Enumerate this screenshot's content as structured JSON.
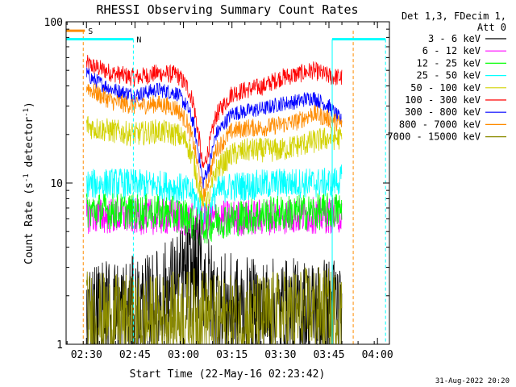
{
  "chart_data": {
    "type": "line",
    "title": "RHESSI Observing Summary Count Rates",
    "xlabel": "Start Time (22-May-16 02:23:42)",
    "ylabel": "Count Rate (s",
    "ylabel_sup": "-1",
    "ylabel_tail": " detector",
    "ylabel_sup2": "-1",
    "ylabel_close": ")",
    "yscale": "log",
    "ylim": [
      1,
      100
    ],
    "xlim_min": [
      143.7,
      243.7
    ],
    "x_ticks": [
      {
        "min": 150,
        "label": "02:30"
      },
      {
        "min": 165,
        "label": "02:45"
      },
      {
        "min": 180,
        "label": "03:00"
      },
      {
        "min": 195,
        "label": "03:15"
      },
      {
        "min": 210,
        "label": "03:30"
      },
      {
        "min": 225,
        "label": "03:45"
      },
      {
        "min": 240,
        "label": "04:00"
      }
    ],
    "y_ticks": [
      {
        "v": 1,
        "label": "1"
      },
      {
        "v": 10,
        "label": "10"
      },
      {
        "v": 100,
        "label": "100"
      }
    ],
    "legend": {
      "header": [
        "Det 1,3, FDecim 1,",
        "Att 0"
      ],
      "placement": "right"
    },
    "series": [
      {
        "name": "3 - 6 keV",
        "color": "#000000"
      },
      {
        "name": "6 - 12 keV",
        "color": "#ff00ff"
      },
      {
        "name": "12 - 25 keV",
        "color": "#00ff00"
      },
      {
        "name": "25 - 50 keV",
        "color": "#00ffff"
      },
      {
        "name": "50 - 100 keV",
        "color": "#d2d200"
      },
      {
        "name": "100 - 300 keV",
        "color": "#ff0000"
      },
      {
        "name": "300 - 800 keV",
        "color": "#0000ff"
      },
      {
        "name": "800 - 7000 keV",
        "color": "#ff8c00"
      },
      {
        "name": "7000 - 15000 keV",
        "color": "#8b8b00"
      }
    ],
    "profiles": [
      {
        "series": "100 - 300 keV",
        "x": [
          150,
          152,
          158,
          165,
          172,
          178,
          181,
          183,
          185,
          186,
          188,
          190,
          195,
          200,
          205,
          210,
          215,
          220,
          225,
          229
        ],
        "y": [
          55,
          53,
          48,
          45,
          48,
          47,
          40,
          32,
          18,
          12,
          17,
          26,
          36,
          38,
          40,
          45,
          47,
          50,
          46,
          45
        ]
      },
      {
        "series": "300 - 800 keV",
        "x": [
          150,
          152,
          158,
          165,
          172,
          178,
          181,
          183,
          185,
          186,
          188,
          190,
          195,
          200,
          205,
          210,
          215,
          220,
          225,
          229
        ],
        "y": [
          48,
          44,
          38,
          35,
          38,
          36,
          30,
          24,
          14,
          10,
          13,
          20,
          27,
          28,
          29,
          31,
          32,
          34,
          30,
          24
        ]
      },
      {
        "series": "800 - 7000 keV",
        "x": [
          150,
          152,
          158,
          165,
          172,
          178,
          181,
          183,
          185,
          186,
          188,
          190,
          195,
          200,
          205,
          210,
          215,
          220,
          225,
          229
        ],
        "y": [
          40,
          37,
          32,
          30,
          31,
          29,
          24,
          18,
          11,
          8,
          11,
          16,
          21,
          22,
          22,
          23,
          24,
          27,
          25,
          23
        ]
      },
      {
        "series": "50 - 100 keV",
        "x": [
          150,
          152,
          158,
          165,
          172,
          178,
          181,
          183,
          185,
          186,
          188,
          190,
          195,
          200,
          205,
          210,
          215,
          220,
          225,
          229
        ],
        "y": [
          23,
          22,
          21,
          20,
          21,
          20,
          18,
          14,
          9,
          7,
          8,
          12,
          15,
          16,
          16,
          16,
          17,
          18,
          19,
          19
        ]
      },
      {
        "series": "25 - 50 keV",
        "x": [
          150,
          155,
          160,
          165,
          170,
          175,
          180,
          183,
          185,
          186,
          188,
          190,
          195,
          200,
          205,
          210,
          215,
          220,
          225,
          229
        ],
        "y": [
          9.8,
          9.9,
          10,
          9.8,
          9.7,
          9.6,
          9.2,
          8.5,
          7,
          6,
          6.5,
          8.8,
          9.5,
          9.6,
          9.8,
          10,
          10,
          10,
          10,
          10.5
        ]
      },
      {
        "series": "6 - 12 keV",
        "x": [
          150,
          160,
          170,
          180,
          185,
          190,
          200,
          210,
          220,
          229
        ],
        "y": [
          6.3,
          6.2,
          6.2,
          6.1,
          5.5,
          6,
          6.1,
          6.2,
          6.3,
          6.3
        ]
      },
      {
        "series": "12 - 25 keV",
        "x": [
          150,
          160,
          170,
          180,
          185,
          190,
          200,
          210,
          220,
          229
        ],
        "y": [
          6.8,
          6.7,
          6.6,
          6.3,
          5.2,
          5.8,
          6.2,
          6.5,
          6.6,
          6.8
        ]
      },
      {
        "series": "3 - 6 keV",
        "x": [
          150,
          160,
          170,
          180,
          185,
          190,
          200,
          210,
          220,
          229
        ],
        "y": [
          1.6,
          1.6,
          1.7,
          2.6,
          2.9,
          1.8,
          1.6,
          1.6,
          1.6,
          1.7
        ]
      },
      {
        "series": "7000 - 15000 keV",
        "x": [
          150,
          160,
          170,
          180,
          185,
          190,
          200,
          210,
          220,
          229
        ],
        "y": [
          1.5,
          1.4,
          1.4,
          1.5,
          1.6,
          1.4,
          1.4,
          1.5,
          1.6,
          1.5
        ]
      }
    ],
    "data_range_min": [
      150,
      229
    ],
    "annotations": [
      {
        "label": "S",
        "color": "#ff8c00",
        "bar_min": [
          143.7,
          149.5
        ],
        "lines_min": [
          149,
          232.5
        ],
        "level": 88
      },
      {
        "label": "N",
        "color": "#00ffff",
        "bar_min": [
          143.7,
          164.5
        ],
        "bar2_min": [
          226,
          242.5
        ],
        "lines_min": [
          164.5,
          226,
          242.5
        ],
        "level": 78
      }
    ],
    "grid": false
  },
  "footer": {
    "date": "31-Aug-2022 20:20"
  }
}
